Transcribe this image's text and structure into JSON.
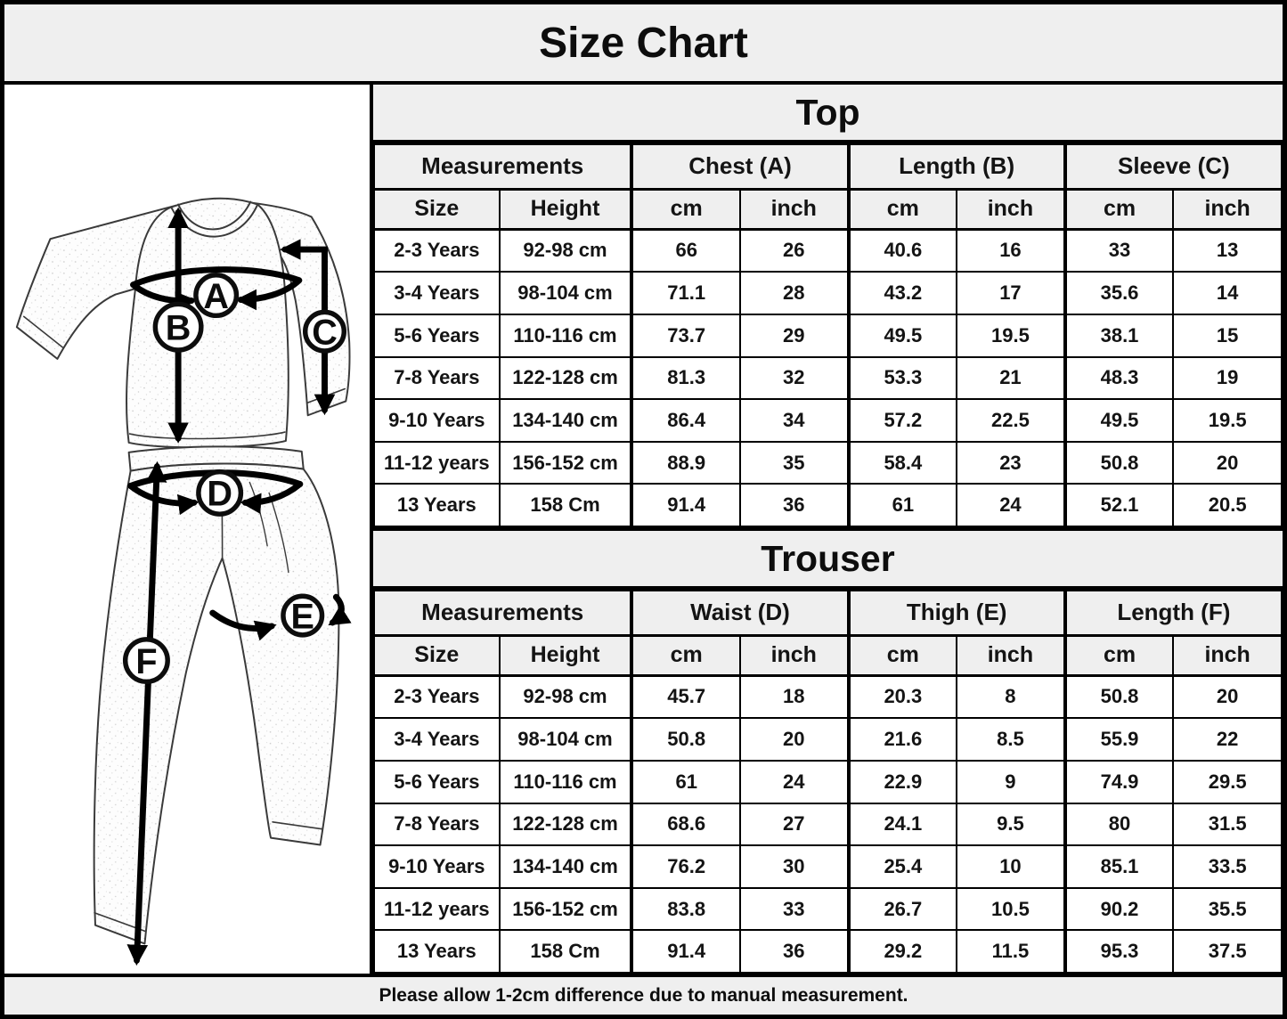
{
  "title": "Size Chart",
  "footer": "Please allow 1-2cm difference due to manual measurement.",
  "colors": {
    "header_bg": "#efefef",
    "border": "#000000",
    "row_bg": "#ffffff"
  },
  "diagram": {
    "labels": [
      "A",
      "B",
      "C",
      "D",
      "E",
      "F"
    ]
  },
  "chart_data": [
    {
      "type": "table",
      "title": "Top",
      "group_headers": [
        "Measurements",
        "Chest (A)",
        "Length (B)",
        "Sleeve (C)"
      ],
      "columns": [
        "Size",
        "Height",
        "cm",
        "inch",
        "cm",
        "inch",
        "cm",
        "inch"
      ],
      "rows": [
        [
          "2-3 Years",
          "92-98 cm",
          "66",
          "26",
          "40.6",
          "16",
          "33",
          "13"
        ],
        [
          "3-4 Years",
          "98-104 cm",
          "71.1",
          "28",
          "43.2",
          "17",
          "35.6",
          "14"
        ],
        [
          "5-6 Years",
          "110-116 cm",
          "73.7",
          "29",
          "49.5",
          "19.5",
          "38.1",
          "15"
        ],
        [
          "7-8 Years",
          "122-128 cm",
          "81.3",
          "32",
          "53.3",
          "21",
          "48.3",
          "19"
        ],
        [
          "9-10 Years",
          "134-140 cm",
          "86.4",
          "34",
          "57.2",
          "22.5",
          "49.5",
          "19.5"
        ],
        [
          "11-12 years",
          "156-152 cm",
          "88.9",
          "35",
          "58.4",
          "23",
          "50.8",
          "20"
        ],
        [
          "13 Years",
          "158 Cm",
          "91.4",
          "36",
          "61",
          "24",
          "52.1",
          "20.5"
        ]
      ]
    },
    {
      "type": "table",
      "title": "Trouser",
      "group_headers": [
        "Measurements",
        "Waist (D)",
        "Thigh (E)",
        "Length (F)"
      ],
      "columns": [
        "Size",
        "Height",
        "cm",
        "inch",
        "cm",
        "inch",
        "cm",
        "inch"
      ],
      "rows": [
        [
          "2-3 Years",
          "92-98 cm",
          "45.7",
          "18",
          "20.3",
          "8",
          "50.8",
          "20"
        ],
        [
          "3-4 Years",
          "98-104 cm",
          "50.8",
          "20",
          "21.6",
          "8.5",
          "55.9",
          "22"
        ],
        [
          "5-6 Years",
          "110-116 cm",
          "61",
          "24",
          "22.9",
          "9",
          "74.9",
          "29.5"
        ],
        [
          "7-8 Years",
          "122-128 cm",
          "68.6",
          "27",
          "24.1",
          "9.5",
          "80",
          "31.5"
        ],
        [
          "9-10 Years",
          "134-140 cm",
          "76.2",
          "30",
          "25.4",
          "10",
          "85.1",
          "33.5"
        ],
        [
          "11-12 years",
          "156-152 cm",
          "83.8",
          "33",
          "26.7",
          "10.5",
          "90.2",
          "35.5"
        ],
        [
          "13 Years",
          "158 Cm",
          "91.4",
          "36",
          "29.2",
          "11.5",
          "95.3",
          "37.5"
        ]
      ]
    }
  ]
}
